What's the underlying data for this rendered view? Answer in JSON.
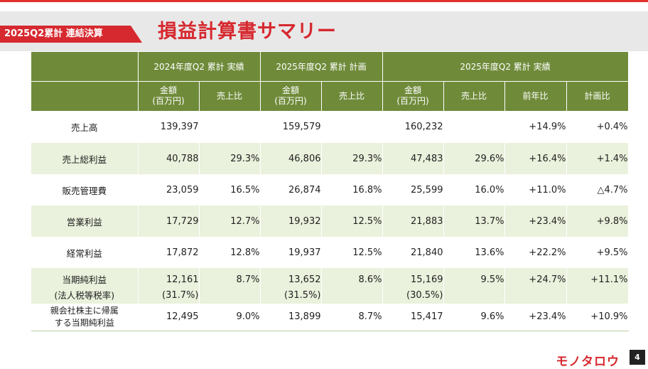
{
  "header": {
    "tag": "2025Q2累計 連結決算",
    "title": "損益計算書サマリー"
  },
  "table": {
    "groups": [
      "2024年度Q2 累計 実績",
      "2025年度Q2 累計 計画",
      "2025年度Q2 累計 実績"
    ],
    "sub": {
      "amount_line1": "金額",
      "amount_line2": "(百万円)",
      "ratio": "売上比",
      "yoy": "前年比",
      "vs_plan": "計画比"
    },
    "rows": [
      {
        "label": "売上高",
        "c": [
          "139,397",
          "",
          "159,579",
          "",
          "160,232",
          "",
          "+14.9%",
          "+0.4%"
        ]
      },
      {
        "label": "売上総利益",
        "c": [
          "40,788",
          "29.3%",
          "46,806",
          "29.3%",
          "47,483",
          "29.6%",
          "+16.4%",
          "+1.4%"
        ]
      },
      {
        "label": "販売管理費",
        "c": [
          "23,059",
          "16.5%",
          "26,874",
          "16.8%",
          "25,599",
          "16.0%",
          "+11.0%",
          "△4.7%"
        ]
      },
      {
        "label": "営業利益",
        "c": [
          "17,729",
          "12.7%",
          "19,932",
          "12.5%",
          "21,883",
          "13.7%",
          "+23.4%",
          "+9.8%"
        ]
      },
      {
        "label": "経常利益",
        "c": [
          "17,872",
          "12.8%",
          "19,937",
          "12.5%",
          "21,840",
          "13.6%",
          "+22.2%",
          "+9.5%"
        ]
      },
      {
        "label": "当期純利益",
        "sublabel": "(法人税等税率)",
        "c": [
          "12,161",
          "8.7%",
          "13,652",
          "8.6%",
          "15,169",
          "9.5%",
          "+24.7%",
          "+11.1%"
        ],
        "sub": [
          "(31.7%)",
          "(31.5%)",
          "(30.5%)"
        ]
      },
      {
        "label": "親会社株主に帰属",
        "sublabel": "する当期純利益",
        "c": [
          "12,495",
          "9.0%",
          "13,899",
          "8.7%",
          "15,417",
          "9.6%",
          "+23.4%",
          "+10.9%"
        ]
      }
    ]
  },
  "footer": {
    "logo": "モノタロウ",
    "page": "4"
  }
}
